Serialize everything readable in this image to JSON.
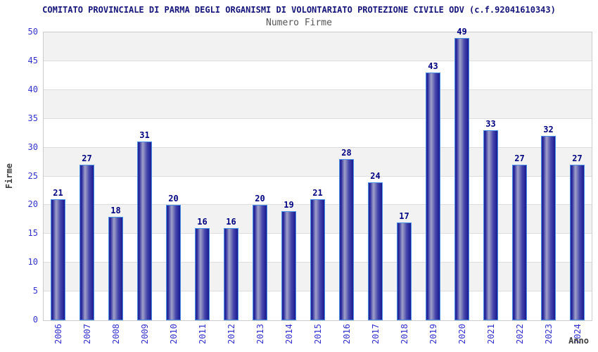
{
  "header": {
    "title": "COMITATO PROVINCIALE DI PARMA DEGLI ORGANISMI DI VOLONTARIATO PROTEZIONE CIVILE ODV (c.f.92041610343)",
    "subtitle": "Numero Firme"
  },
  "chart_data": {
    "type": "bar",
    "title": "COMITATO PROVINCIALE DI PARMA DEGLI ORGANISMI DI VOLONTARIATO PROTEZIONE CIVILE ODV (c.f.92041610343)",
    "subtitle": "Numero Firme",
    "categories": [
      "2006",
      "2007",
      "2008",
      "2009",
      "2010",
      "2011",
      "2012",
      "2013",
      "2014",
      "2015",
      "2016",
      "2017",
      "2018",
      "2019",
      "2020",
      "2021",
      "2022",
      "2023",
      "2024"
    ],
    "values": [
      21,
      27,
      18,
      31,
      20,
      16,
      16,
      20,
      19,
      21,
      28,
      24,
      17,
      43,
      49,
      33,
      27,
      32,
      27
    ],
    "xlabel": "Anno",
    "ylabel": "Firme",
    "ylim": [
      0,
      50
    ],
    "ytick_step": 5,
    "grid": true,
    "legend": "none"
  },
  "colors": {
    "title_text": "#14147a",
    "subtitle_text": "#555555",
    "tick_label": "#3333cc",
    "value_label": "#000080",
    "axis_title": "#404040",
    "plot_border": "#cccccc",
    "band_gray": "#f2f2f2",
    "band_white": "#ffffff",
    "gridline": "#dddddd",
    "bar_border": "#4a90e2",
    "bar_gradient": [
      "#32329e",
      "#20209a",
      "#a0a0ca",
      "#8c8cc0",
      "#4646ac",
      "#1a1a92"
    ]
  }
}
